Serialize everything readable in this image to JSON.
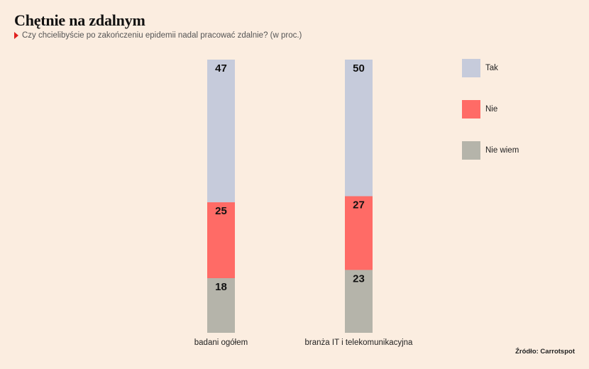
{
  "chart_data": {
    "type": "bar",
    "stacked": true,
    "title": "Chętnie na zdalnym",
    "subtitle": "Czy chcielibyście po zakończeniu epidemii nadal pracować zdalnie? (w proc.)",
    "categories": [
      "badani ogółem",
      "branża IT i telekomunikacyjna"
    ],
    "series": [
      {
        "name": "Tak",
        "color": "#c6cbdb",
        "values": [
          47,
          50
        ]
      },
      {
        "name": "Nie",
        "color": "#ff6b66",
        "values": [
          25,
          27
        ]
      },
      {
        "name": "Nie wiem",
        "color": "#b5b4aa",
        "values": [
          18,
          23
        ]
      }
    ],
    "legend_position": "top-right",
    "source": "Źródło: Carrotspot"
  }
}
